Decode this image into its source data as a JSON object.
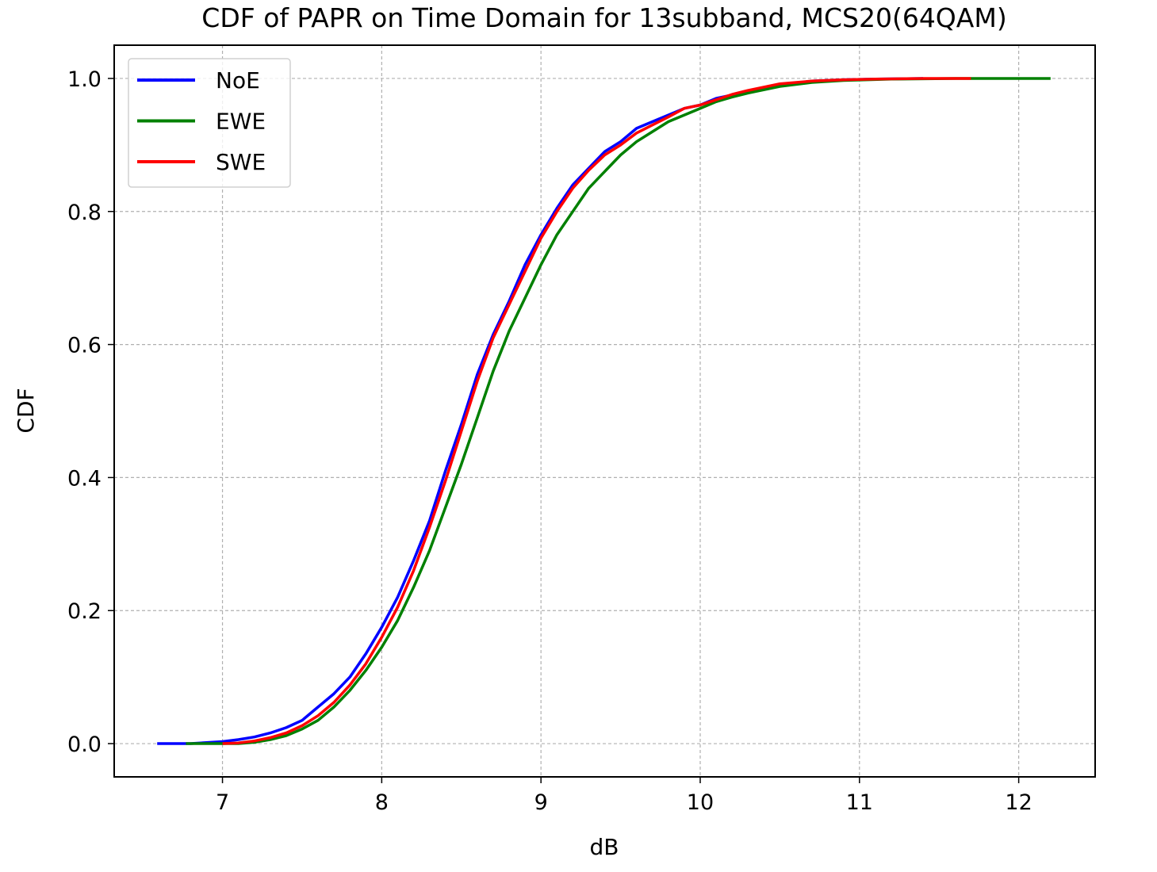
{
  "chart_data": {
    "type": "line",
    "title": "CDF of PAPR on Time Domain for 13subband, MCS20(64QAM)",
    "xlabel": "dB",
    "ylabel": "CDF",
    "xlim": [
      6.32,
      12.48
    ],
    "ylim": [
      -0.05,
      1.05
    ],
    "xticks": [
      7,
      8,
      9,
      10,
      11,
      12
    ],
    "xtick_labels": [
      "7",
      "8",
      "9",
      "10",
      "11",
      "12"
    ],
    "yticks": [
      0.0,
      0.2,
      0.4,
      0.6,
      0.8,
      1.0
    ],
    "ytick_labels": [
      "0.0",
      "0.2",
      "0.4",
      "0.6",
      "0.8",
      "1.0"
    ],
    "grid": true,
    "legend_position": "top-left",
    "series": [
      {
        "name": "NoE",
        "color": "#0000ff",
        "x": [
          6.59,
          6.8,
          7.0,
          7.1,
          7.2,
          7.3,
          7.4,
          7.5,
          7.6,
          7.7,
          7.8,
          7.9,
          8.0,
          8.1,
          8.2,
          8.3,
          8.4,
          8.5,
          8.6,
          8.7,
          8.8,
          8.9,
          9.0,
          9.1,
          9.2,
          9.3,
          9.4,
          9.5,
          9.6,
          9.7,
          9.8,
          9.9,
          10.0,
          10.1,
          10.2,
          10.3,
          10.5,
          10.7,
          10.9,
          11.1,
          11.4
        ],
        "y": [
          0.0,
          0.0,
          0.003,
          0.006,
          0.01,
          0.016,
          0.024,
          0.035,
          0.055,
          0.075,
          0.1,
          0.135,
          0.175,
          0.22,
          0.275,
          0.335,
          0.41,
          0.48,
          0.555,
          0.615,
          0.665,
          0.72,
          0.765,
          0.805,
          0.84,
          0.865,
          0.89,
          0.905,
          0.925,
          0.935,
          0.945,
          0.955,
          0.96,
          0.97,
          0.975,
          0.98,
          0.99,
          0.996,
          0.998,
          0.999,
          1.0
        ]
      },
      {
        "name": "EWE",
        "color": "#008000",
        "x": [
          6.77,
          7.0,
          7.1,
          7.2,
          7.3,
          7.4,
          7.5,
          7.6,
          7.7,
          7.8,
          7.9,
          8.0,
          8.1,
          8.2,
          8.3,
          8.4,
          8.5,
          8.6,
          8.7,
          8.8,
          8.9,
          9.0,
          9.1,
          9.2,
          9.3,
          9.4,
          9.5,
          9.6,
          9.7,
          9.8,
          9.9,
          10.0,
          10.1,
          10.2,
          10.3,
          10.5,
          10.7,
          10.9,
          11.2,
          11.6,
          12.0,
          12.2
        ],
        "y": [
          0.0,
          0.0,
          0.0,
          0.002,
          0.006,
          0.012,
          0.022,
          0.035,
          0.055,
          0.08,
          0.11,
          0.145,
          0.185,
          0.235,
          0.29,
          0.355,
          0.42,
          0.49,
          0.56,
          0.62,
          0.67,
          0.72,
          0.765,
          0.8,
          0.835,
          0.86,
          0.885,
          0.905,
          0.92,
          0.935,
          0.945,
          0.955,
          0.965,
          0.972,
          0.978,
          0.988,
          0.994,
          0.997,
          0.999,
          1.0,
          1.0,
          1.0
        ]
      },
      {
        "name": "SWE",
        "color": "#ff0000",
        "x": [
          7.0,
          7.1,
          7.2,
          7.3,
          7.4,
          7.5,
          7.6,
          7.7,
          7.8,
          7.9,
          8.0,
          8.1,
          8.2,
          8.3,
          8.4,
          8.5,
          8.6,
          8.7,
          8.8,
          8.9,
          9.0,
          9.1,
          9.2,
          9.3,
          9.4,
          9.5,
          9.6,
          9.7,
          9.8,
          9.9,
          10.0,
          10.1,
          10.2,
          10.3,
          10.5,
          10.7,
          10.9,
          11.1,
          11.4,
          11.7
        ],
        "y": [
          0.0,
          0.001,
          0.004,
          0.009,
          0.016,
          0.027,
          0.042,
          0.062,
          0.088,
          0.12,
          0.16,
          0.205,
          0.26,
          0.325,
          0.395,
          0.47,
          0.545,
          0.61,
          0.66,
          0.71,
          0.76,
          0.8,
          0.835,
          0.862,
          0.885,
          0.9,
          0.918,
          0.93,
          0.942,
          0.955,
          0.96,
          0.968,
          0.976,
          0.982,
          0.992,
          0.996,
          0.998,
          0.999,
          1.0,
          1.0
        ]
      }
    ]
  }
}
